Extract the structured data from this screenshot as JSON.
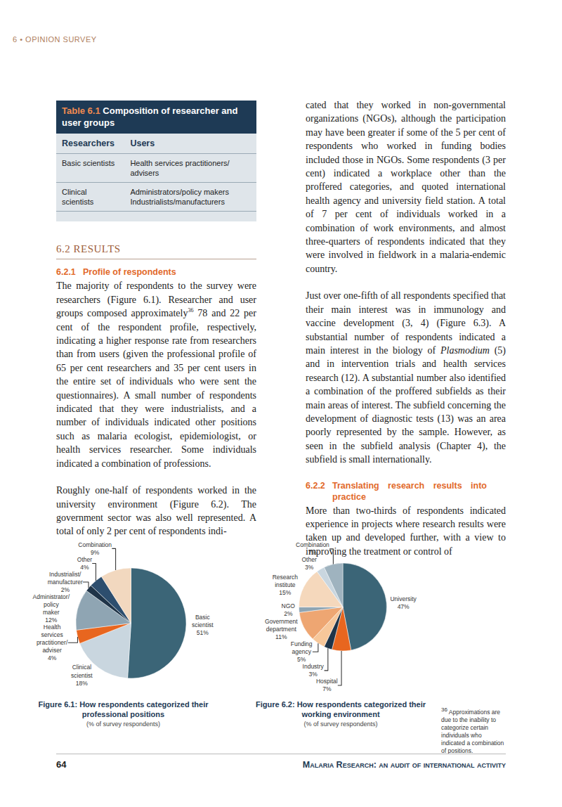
{
  "header": {
    "running_head": "6 • OPINION SURVEY"
  },
  "table": {
    "label": "Table 6.1",
    "title": "Composition of researcher and user groups",
    "columns": [
      "Researchers",
      "Users"
    ],
    "rows": [
      [
        [
          "Basic scientists"
        ],
        [
          "Health services practitioners/ advisers"
        ]
      ],
      [
        [
          "Clinical scientists"
        ],
        [
          "Administrators/policy makers",
          "Industrialists/manufacturers"
        ]
      ]
    ]
  },
  "left_column": [
    {
      "kind": "section",
      "number": "6.2",
      "title": "RESULTS"
    },
    {
      "kind": "heading",
      "number": "6.2.1",
      "title": "Profile of respondents"
    },
    {
      "kind": "p",
      "parts": [
        "The majority of respondents to the survey were researchers (Figure 6.1). Researcher and user groups composed approximately",
        {
          "sup": "36"
        },
        " 78 and 22 per cent of the respondent profile, respectively, indicating a higher response rate from researchers than from users (given the professional profile of 65 per cent researchers and 35 per cent users in the entire set of individuals who were sent the questionnaires). A small number of respondents indicated that they were industrialists, and a number of individuals indicated other positions such as malaria ecologist, epidemiologist, or health services researcher. Some individuals indicated a combination of professions."
      ]
    },
    {
      "kind": "p",
      "parts": [
        "Roughly one-half of respondents worked in the university environment (Figure 6.2). The government sector was also well represented. A total of only 2 per cent of respondents indi-"
      ]
    }
  ],
  "right_column": [
    {
      "kind": "p",
      "parts": [
        "cated that they worked in non-governmental organizations (NGOs), although the participation may have been greater if some of the 5 per cent of respondents who worked in funding bodies included those in NGOs. Some respondents (3 per cent) indicated a workplace other than the proffered categories, and quoted international health agency and university field station. A total of 7 per cent of individuals worked in a combination of work environments, and almost three-quarters of respondents indicated that they were involved in fieldwork in a malaria-endemic country."
      ]
    },
    {
      "kind": "p",
      "parts": [
        "Just over one-fifth of all respondents specified that their main interest was in immunology and vaccine development (3, 4) (Figure 6.3). A substantial number of respondents indicated a main interest in the biology of ",
        {
          "i": "Plasmodium"
        },
        " (5) and in intervention trials and health services research (12). A substantial number also identified a combination of the proffered subfields as their main areas of interest. The subfield concerning the development of diagnostic tests (13) was an area poorly represented by the sample. However, as seen in the subfield analysis (Chapter 4), the subfield is small internationally."
      ]
    },
    {
      "kind": "heading",
      "number": "6.2.2",
      "title": "Translating research results into practice"
    },
    {
      "kind": "p",
      "parts": [
        "More than two-thirds of respondents indicated experience in projects where research results were taken up and developed further, with a view to improving the treatment or control of"
      ]
    }
  ],
  "chart_data": [
    {
      "type": "pie",
      "title": "Figure 6.1: How respondents categorized their professional positions",
      "subtitle": "(% of survey respondents)",
      "categories": [
        "Basic scientist",
        "Clinical scientist",
        "Health services practitioner/ adviser",
        "Administrator/ policy maker",
        "Industrialist/ manufacturer",
        "Other",
        "Combination"
      ],
      "values": [
        51,
        18,
        4,
        12,
        2,
        4,
        9
      ],
      "value_labels": [
        "51%",
        "18%",
        "4%",
        "12%",
        "2%",
        "4%",
        "9%"
      ],
      "colors": [
        "#3b6577",
        "#c9d6df",
        "#e8661f",
        "#8fa5b3",
        "#1f3448",
        "#2d4e6e",
        "#f2d8bf"
      ],
      "data_labels": true
    },
    {
      "type": "pie",
      "title": "Figure 6.2: How respondents categorized their working environment",
      "subtitle": "(% of survey respondents)",
      "categories": [
        "University",
        "Hospital",
        "Industry",
        "Funding agency",
        "Government department",
        "NGO",
        "Research institute",
        "Other",
        "Combination"
      ],
      "values": [
        47,
        7,
        3,
        5,
        11,
        2,
        15,
        3,
        7
      ],
      "value_labels": [
        "47%",
        "7%",
        "3%",
        "5%",
        "11%",
        "2%",
        "15%",
        "3%",
        "7%"
      ],
      "colors": [
        "#3b6577",
        "#e8661f",
        "#1f3448",
        "#f7c79a",
        "#eea672",
        "#8fa5b3",
        "#f5d8bc",
        "#c9d6df",
        "#9fb3bf"
      ],
      "data_labels": true
    }
  ],
  "footnote": {
    "number": "36",
    "text": "Approximations are due to the inability to categorize certain individuals who indicated a combination of positions."
  },
  "footer": {
    "page": "64",
    "title": "Malaria Research: an audit of international activity"
  }
}
